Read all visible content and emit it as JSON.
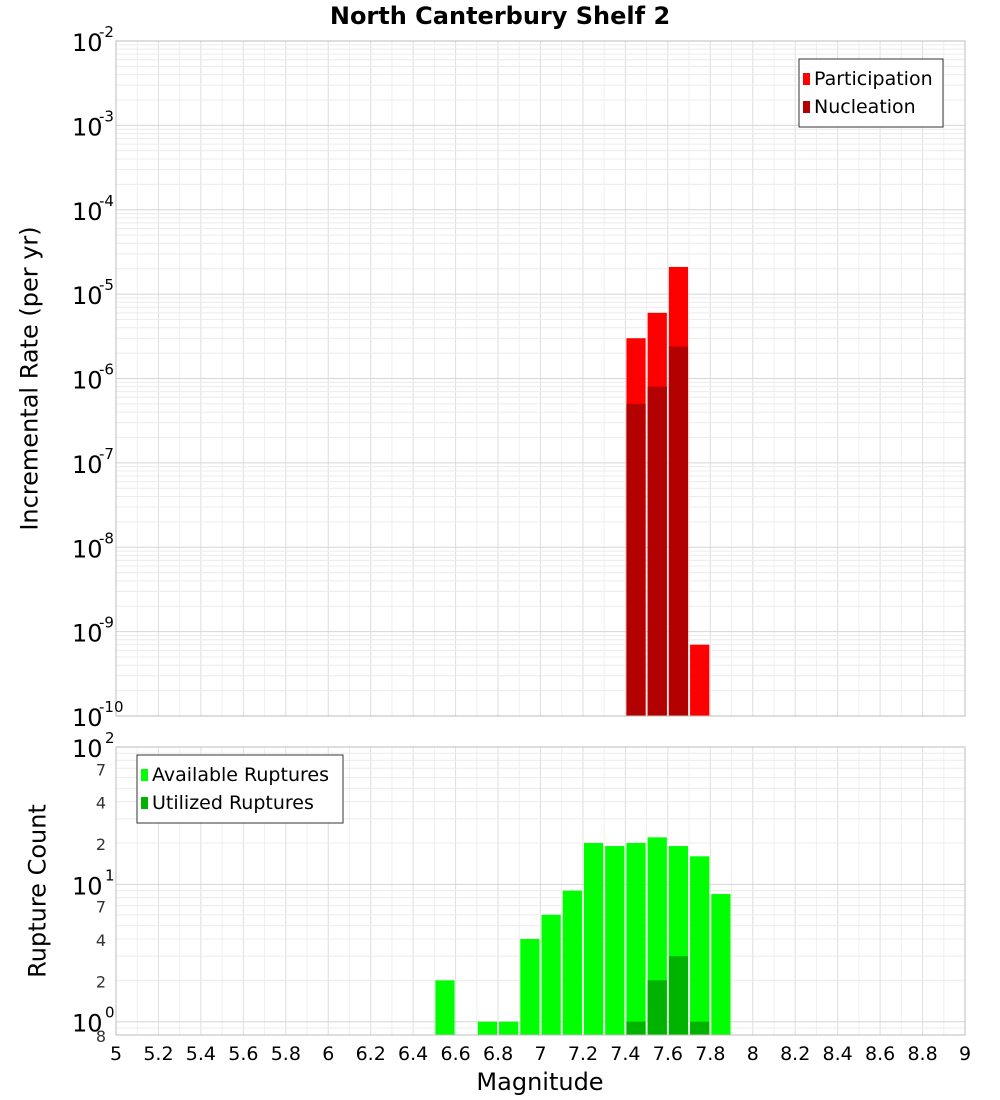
{
  "chart_data": [
    {
      "type": "bar",
      "title": "North Canterbury Shelf 2",
      "xlabel": "",
      "ylabel": "Incremental Rate (per yr)",
      "xlim": [
        5,
        9
      ],
      "ylim": [
        1e-10,
        0.01
      ],
      "yscale": "log",
      "grid": true,
      "legend_position": "top-right",
      "bin_width": 0.1,
      "x_ticks": [
        "5",
        "5.2",
        "5.4",
        "5.6",
        "5.8",
        "6",
        "6.2",
        "6.4",
        "6.6",
        "6.8",
        "7",
        "7.2",
        "7.4",
        "7.6",
        "7.8",
        "8",
        "8.2",
        "8.4",
        "8.6",
        "8.8",
        "9"
      ],
      "y_ticks": [
        {
          "base": "10",
          "exp": "-10"
        },
        {
          "base": "10",
          "exp": "-9"
        },
        {
          "base": "10",
          "exp": "-8"
        },
        {
          "base": "10",
          "exp": "-7"
        },
        {
          "base": "10",
          "exp": "-6"
        },
        {
          "base": "10",
          "exp": "-5"
        },
        {
          "base": "10",
          "exp": "-4"
        },
        {
          "base": "10",
          "exp": "-3"
        },
        {
          "base": "10",
          "exp": "-2"
        }
      ],
      "series": [
        {
          "name": "Participation",
          "color": "#ff0000",
          "x": [
            7.45,
            7.55,
            7.65,
            7.75
          ],
          "values": [
            3e-06,
            6e-06,
            2.1e-05,
            7e-10
          ]
        },
        {
          "name": "Nucleation",
          "color": "#b30000",
          "x": [
            7.45,
            7.55,
            7.65
          ],
          "values": [
            5e-07,
            8e-07,
            2.4e-06
          ]
        }
      ]
    },
    {
      "type": "bar",
      "title": "",
      "xlabel": "Magnitude",
      "ylabel": "Rupture Count",
      "xlim": [
        5,
        9
      ],
      "ylim": [
        0.8,
        100
      ],
      "yscale": "log",
      "grid": true,
      "legend_position": "top-left",
      "bin_width": 0.1,
      "x_ticks": [
        "5",
        "5.2",
        "5.4",
        "5.6",
        "5.8",
        "6",
        "6.2",
        "6.4",
        "6.6",
        "6.8",
        "7",
        "7.2",
        "7.4",
        "7.6",
        "7.8",
        "8",
        "8.2",
        "8.4",
        "8.6",
        "8.8",
        "9"
      ],
      "y_ticks": [
        {
          "base": "10",
          "exp": "0"
        },
        {
          "base": "10",
          "exp": "1"
        },
        {
          "base": "10",
          "exp": "2"
        }
      ],
      "y_minor_labels": [
        "8",
        "2",
        "4",
        "7",
        "2",
        "4",
        "7"
      ],
      "series": [
        {
          "name": "Available Ruptures",
          "color": "#00ff00",
          "x": [
            6.55,
            6.75,
            6.85,
            6.95,
            7.05,
            7.15,
            7.25,
            7.35,
            7.45,
            7.55,
            7.65,
            7.75,
            7.85
          ],
          "values": [
            2,
            1,
            1,
            4,
            6,
            9,
            20,
            19,
            20,
            22,
            19,
            16,
            8.5
          ]
        },
        {
          "name": "Utilized Ruptures",
          "color": "#00b300",
          "x": [
            7.45,
            7.55,
            7.65,
            7.75
          ],
          "values": [
            1,
            2,
            3,
            1
          ]
        }
      ]
    }
  ]
}
